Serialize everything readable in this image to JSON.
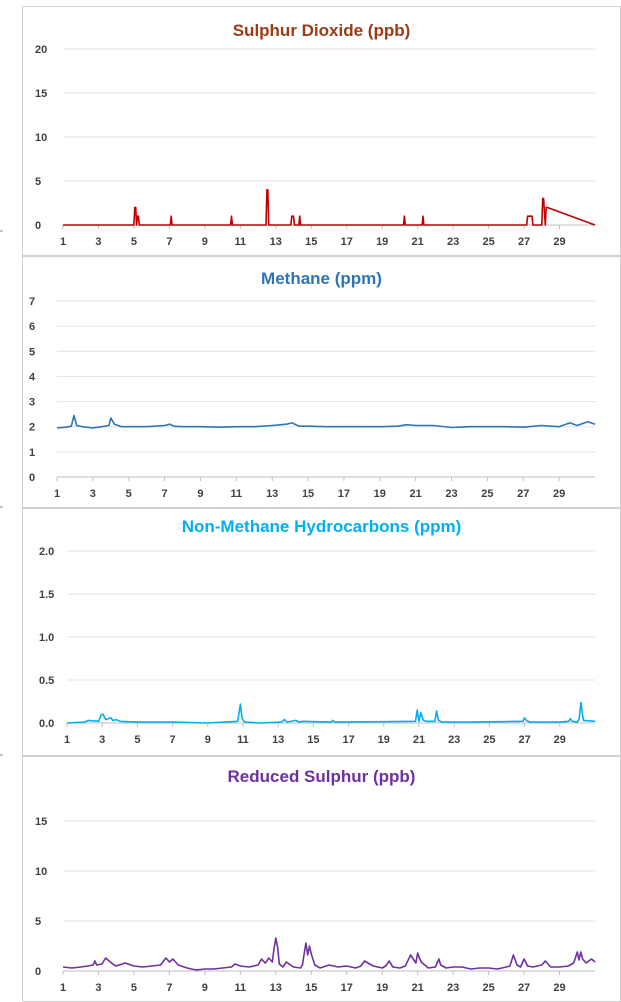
{
  "chart_data": [
    {
      "type": "line",
      "title": "Sulphur Dioxide (ppb)",
      "title_color": "#9e3a14",
      "line_color": "#c00000",
      "x_tick_labels": [
        "1",
        "3",
        "5",
        "7",
        "9",
        "11",
        "13",
        "15",
        "17",
        "19",
        "21",
        "23",
        "25",
        "27",
        "29"
      ],
      "y_tick_labels": [
        "0",
        "5",
        "10",
        "15",
        "20"
      ],
      "xlim": [
        1,
        31
      ],
      "ylim": [
        0,
        20
      ],
      "grid": true,
      "series": [
        {
          "x": [
            1,
            5.0,
            5.05,
            5.1,
            5.15,
            5.2,
            5.25,
            5.3,
            7.05,
            7.1,
            7.15,
            9.7,
            10.45,
            10.5,
            10.55,
            12.45,
            12.5,
            12.55,
            12.6,
            13.85,
            13.9,
            14.0,
            14.05,
            14.3,
            14.35,
            14.4,
            20.2,
            20.25,
            20.3,
            21.25,
            21.3,
            21.35,
            27.15,
            27.2,
            27.45,
            27.5,
            28.0,
            28.05,
            28.1,
            28.2,
            28.25,
            28.3,
            31
          ],
          "y": [
            0,
            0,
            2,
            2,
            0,
            1,
            1,
            0,
            0,
            1,
            0,
            0,
            0,
            1,
            0,
            0,
            4,
            4,
            0,
            0,
            1,
            1,
            0,
            0,
            1,
            0,
            0,
            1,
            0,
            0,
            1,
            0,
            0,
            1,
            1,
            0,
            0,
            3,
            3,
            0,
            2,
            2,
            0
          ]
        }
      ]
    },
    {
      "type": "line",
      "title": "Methane (ppm)",
      "title_color": "#2e75b6",
      "line_color": "#2e75b6",
      "x_tick_labels": [
        "1",
        "3",
        "5",
        "7",
        "9",
        "11",
        "13",
        "15",
        "17",
        "19",
        "21",
        "23",
        "25",
        "27",
        "29"
      ],
      "y_tick_labels": [
        "0",
        "1",
        "2",
        "3",
        "4",
        "5",
        "6",
        "7"
      ],
      "xlim": [
        1,
        31
      ],
      "ylim": [
        0,
        7
      ],
      "grid": true,
      "series": [
        {
          "x": [
            1,
            1.5,
            1.8,
            1.95,
            2.1,
            2.4,
            3.0,
            3.5,
            3.9,
            4.0,
            4.2,
            4.6,
            5.0,
            6.0,
            7.0,
            7.3,
            7.5,
            8.0,
            9.0,
            10.0,
            11.0,
            12.0,
            13.0,
            13.8,
            14.1,
            14.5,
            15.0,
            16.0,
            17.0,
            18.0,
            19.0,
            20.0,
            20.5,
            21.0,
            22.0,
            23.0,
            24.0,
            25.0,
            26.0,
            27.0,
            28.0,
            29.0,
            29.6,
            30.0,
            30.6,
            31
          ],
          "y": [
            1.95,
            1.98,
            2.02,
            2.45,
            2.05,
            2.0,
            1.95,
            2.0,
            2.05,
            2.35,
            2.1,
            2.0,
            2.0,
            2.0,
            2.05,
            2.1,
            2.02,
            2.0,
            2.0,
            1.98,
            2.0,
            2.0,
            2.05,
            2.1,
            2.15,
            2.02,
            2.02,
            2.0,
            2.0,
            2.0,
            2.0,
            2.02,
            2.08,
            2.05,
            2.05,
            1.97,
            2.0,
            2.0,
            2.0,
            1.98,
            2.05,
            2.0,
            2.15,
            2.05,
            2.2,
            2.1
          ]
        }
      ]
    },
    {
      "type": "line",
      "title": "Non-Methane Hydrocarbons (ppm)",
      "title_color": "#00b0f0",
      "line_color": "#00b0f0",
      "x_tick_labels": [
        "1",
        "3",
        "5",
        "7",
        "9",
        "11",
        "13",
        "15",
        "17",
        "19",
        "21",
        "23",
        "25",
        "27",
        "29"
      ],
      "y_tick_labels": [
        "0.0",
        "0.5",
        "1.0",
        "1.5",
        "2.0"
      ],
      "xlim": [
        1,
        31
      ],
      "ylim": [
        0,
        2.0
      ],
      "grid": true,
      "series": [
        {
          "x": [
            1,
            2.0,
            2.2,
            2.8,
            2.95,
            3.05,
            3.2,
            3.5,
            3.6,
            3.8,
            4.0,
            5.0,
            7.0,
            9.0,
            10.7,
            10.85,
            10.95,
            11.1,
            12.0,
            13.2,
            13.35,
            13.5,
            14.0,
            14.2,
            14.4,
            16.0,
            16.1,
            16.2,
            20.8,
            20.9,
            21.0,
            21.1,
            21.25,
            21.4,
            21.9,
            22.0,
            22.1,
            22.3,
            24.0,
            26.9,
            27.0,
            27.1,
            27.3,
            29.0,
            29.5,
            29.6,
            29.7,
            30.0,
            30.1,
            30.2,
            30.3,
            30.35,
            31
          ],
          "y": [
            0.0,
            0.01,
            0.03,
            0.02,
            0.1,
            0.1,
            0.04,
            0.06,
            0.03,
            0.04,
            0.02,
            0.01,
            0.01,
            0.0,
            0.02,
            0.22,
            0.05,
            0.01,
            0.0,
            0.01,
            0.04,
            0.01,
            0.03,
            0.01,
            0.02,
            0.01,
            0.03,
            0.01,
            0.02,
            0.15,
            0.02,
            0.12,
            0.03,
            0.02,
            0.02,
            0.14,
            0.03,
            0.01,
            0.01,
            0.02,
            0.06,
            0.03,
            0.01,
            0.01,
            0.02,
            0.05,
            0.02,
            0.01,
            0.05,
            0.24,
            0.08,
            0.03,
            0.02
          ]
        }
      ]
    },
    {
      "type": "line",
      "title": "Reduced Sulphur (ppb)",
      "title_color": "#7030a0",
      "line_color": "#7030a0",
      "x_tick_labels": [
        "1",
        "3",
        "5",
        "7",
        "9",
        "11",
        "13",
        "15",
        "17",
        "19",
        "21",
        "23",
        "25",
        "27",
        "29"
      ],
      "y_tick_labels": [
        "0",
        "5",
        "10",
        "15"
      ],
      "xlim": [
        1,
        31
      ],
      "ylim": [
        0,
        17
      ],
      "grid": true,
      "series": [
        {
          "x": [
            1,
            1.5,
            2.0,
            2.4,
            2.7,
            2.8,
            2.9,
            3.2,
            3.4,
            3.8,
            4.0,
            4.5,
            5.0,
            5.5,
            6.0,
            6.5,
            6.8,
            7.0,
            7.2,
            7.5,
            8.0,
            8.5,
            9.0,
            9.5,
            10.0,
            10.5,
            10.7,
            11.0,
            11.5,
            12.0,
            12.2,
            12.4,
            12.5,
            12.6,
            12.8,
            12.9,
            13.0,
            13.1,
            13.2,
            13.4,
            13.6,
            14.0,
            14.4,
            14.5,
            14.7,
            14.8,
            14.9,
            15.0,
            15.2,
            15.5,
            16.0,
            16.5,
            17.0,
            17.5,
            17.8,
            18.0,
            18.5,
            19.0,
            19.2,
            19.4,
            19.6,
            20.0,
            20.3,
            20.6,
            20.9,
            21.0,
            21.1,
            21.2,
            21.4,
            21.6,
            22.0,
            22.2,
            22.3,
            22.6,
            23.0,
            23.5,
            24.0,
            24.5,
            25.0,
            25.5,
            26.0,
            26.2,
            26.4,
            26.6,
            26.8,
            27.0,
            27.2,
            27.5,
            28.0,
            28.2,
            28.5,
            29.0,
            29.5,
            29.8,
            30.0,
            30.1,
            30.2,
            30.3,
            30.5,
            30.8,
            31
          ],
          "y": [
            0.4,
            0.3,
            0.4,
            0.5,
            0.6,
            1.0,
            0.6,
            0.7,
            1.3,
            0.7,
            0.5,
            0.8,
            0.5,
            0.4,
            0.5,
            0.6,
            1.3,
            0.9,
            1.2,
            0.6,
            0.3,
            0.1,
            0.2,
            0.2,
            0.3,
            0.4,
            0.7,
            0.5,
            0.4,
            0.6,
            1.2,
            0.8,
            1.0,
            1.3,
            0.9,
            2.2,
            3.3,
            2.4,
            0.7,
            0.4,
            0.9,
            0.4,
            0.3,
            0.6,
            2.8,
            1.6,
            2.5,
            1.7,
            0.6,
            0.3,
            0.6,
            0.4,
            0.5,
            0.3,
            0.5,
            1.0,
            0.5,
            0.3,
            0.5,
            1.0,
            0.4,
            0.3,
            0.5,
            1.6,
            0.8,
            1.8,
            1.3,
            0.9,
            0.6,
            0.3,
            0.4,
            1.2,
            0.6,
            0.3,
            0.4,
            0.4,
            0.2,
            0.3,
            0.3,
            0.2,
            0.4,
            0.5,
            1.6,
            0.6,
            0.4,
            1.2,
            0.5,
            0.4,
            0.6,
            1.0,
            0.4,
            0.4,
            0.5,
            0.8,
            1.9,
            1.1,
            1.9,
            1.2,
            0.8,
            1.2,
            0.9
          ]
        }
      ]
    }
  ]
}
